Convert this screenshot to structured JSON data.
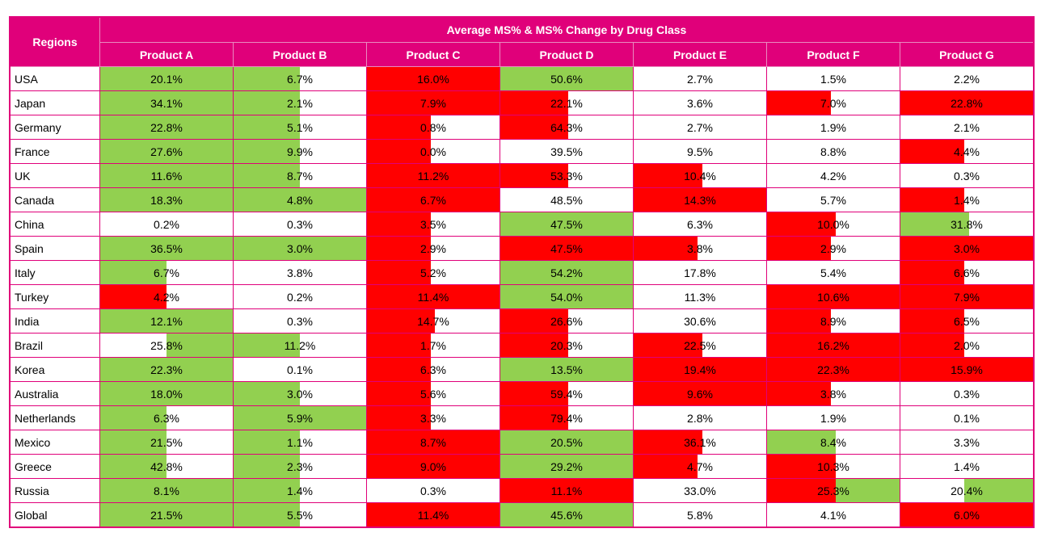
{
  "header": {
    "regions_label": "Regions",
    "title": "Average MS% & MS% Change by Drug Class"
  },
  "colors": {
    "header_bg": "#e0007a",
    "positive": "#92d050",
    "negative": "#ff0000",
    "border": "#e0007a"
  },
  "chart_data": {
    "type": "table",
    "title": "Average MS% & MS% Change by Drug Class",
    "columns": [
      "Product A",
      "Product B",
      "Product C",
      "Product D",
      "Product E",
      "Product F",
      "Product G"
    ],
    "rows": [
      {
        "region": "USA",
        "values": [
          "20.1%",
          "6.7%",
          "16.0%",
          "50.6%",
          "2.7%",
          "1.5%",
          "2.2%"
        ],
        "change": [
          {
            "c": "g",
            "p": 100
          },
          {
            "c": "g",
            "p": 50
          },
          {
            "c": "r",
            "p": 100
          },
          {
            "c": "g",
            "p": 100
          },
          null,
          null,
          null
        ]
      },
      {
        "region": "Japan",
        "values": [
          "34.1%",
          "2.1%",
          "7.9%",
          "22.1%",
          "3.6%",
          "7.0%",
          "22.8%"
        ],
        "change": [
          {
            "c": "g",
            "p": 100
          },
          {
            "c": "g",
            "p": 50
          },
          {
            "c": "r",
            "p": 100
          },
          {
            "c": "r",
            "p": 51
          },
          null,
          {
            "c": "r",
            "p": 48
          },
          {
            "c": "r",
            "p": 100
          }
        ]
      },
      {
        "region": "Germany",
        "values": [
          "22.8%",
          "5.1%",
          "0.8%",
          "64.3%",
          "2.7%",
          "1.9%",
          "2.1%"
        ],
        "change": [
          {
            "c": "g",
            "p": 100
          },
          {
            "c": "g",
            "p": 50
          },
          {
            "c": "r",
            "p": 48
          },
          {
            "c": "r",
            "p": 51
          },
          null,
          null,
          null
        ]
      },
      {
        "region": "France",
        "values": [
          "27.6%",
          "9.9%",
          "0.0%",
          "39.5%",
          "9.5%",
          "8.8%",
          "4.4%"
        ],
        "change": [
          {
            "c": "g",
            "p": 100
          },
          {
            "c": "g",
            "p": 50
          },
          {
            "c": "r",
            "p": 48
          },
          null,
          null,
          null,
          {
            "c": "r",
            "p": 48
          }
        ]
      },
      {
        "region": "UK",
        "values": [
          "11.6%",
          "8.7%",
          "11.2%",
          "53.3%",
          "10.4%",
          "4.2%",
          "0.3%"
        ],
        "change": [
          {
            "c": "g",
            "p": 100
          },
          {
            "c": "g",
            "p": 50
          },
          {
            "c": "r",
            "p": 100
          },
          {
            "c": "r",
            "p": 51
          },
          {
            "c": "r",
            "p": 52
          },
          null,
          null
        ]
      },
      {
        "region": "Canada",
        "values": [
          "18.3%",
          "4.8%",
          "6.7%",
          "48.5%",
          "14.3%",
          "5.7%",
          "1.4%"
        ],
        "change": [
          {
            "c": "g",
            "p": 100
          },
          {
            "c": "g",
            "p": 100
          },
          {
            "c": "r",
            "p": 100
          },
          null,
          {
            "c": "r",
            "p": 100
          },
          null,
          {
            "c": "r",
            "p": 48
          }
        ]
      },
      {
        "region": "China",
        "values": [
          "0.2%",
          "0.3%",
          "3.5%",
          "47.5%",
          "6.3%",
          "10.0%",
          "31.8%"
        ],
        "change": [
          null,
          null,
          {
            "c": "r",
            "p": 48
          },
          {
            "c": "g",
            "p": 100
          },
          null,
          {
            "c": "r",
            "p": 52
          },
          {
            "c": "g",
            "p": 52
          }
        ]
      },
      {
        "region": "Spain",
        "values": [
          "36.5%",
          "3.0%",
          "2.9%",
          "47.5%",
          "3.8%",
          "2.9%",
          "3.0%"
        ],
        "change": [
          {
            "c": "g",
            "p": 100
          },
          {
            "c": "g",
            "p": 100
          },
          {
            "c": "r",
            "p": 48
          },
          {
            "c": "r",
            "p": 100
          },
          {
            "c": "r",
            "p": 48
          },
          {
            "c": "r",
            "p": 48
          },
          {
            "c": "r",
            "p": 100
          }
        ]
      },
      {
        "region": "Italy",
        "values": [
          "6.7%",
          "3.8%",
          "5.2%",
          "54.2%",
          "17.8%",
          "5.4%",
          "6.6%"
        ],
        "change": [
          {
            "c": "g",
            "p": 50
          },
          null,
          {
            "c": "r",
            "p": 48
          },
          {
            "c": "g",
            "p": 100
          },
          null,
          null,
          {
            "c": "r",
            "p": 48
          }
        ]
      },
      {
        "region": "Turkey",
        "values": [
          "4.2%",
          "0.2%",
          "11.4%",
          "54.0%",
          "11.3%",
          "10.6%",
          "7.9%"
        ],
        "change": [
          {
            "c": "r",
            "p": 50
          },
          null,
          {
            "c": "r",
            "p": 100
          },
          {
            "c": "g",
            "p": 100
          },
          null,
          {
            "c": "r",
            "p": 100
          },
          {
            "c": "r",
            "p": 100
          }
        ]
      },
      {
        "region": "India",
        "values": [
          "12.1%",
          "0.3%",
          "14.7%",
          "26.6%",
          "30.6%",
          "8.9%",
          "6.5%"
        ],
        "change": [
          {
            "c": "g",
            "p": 100
          },
          null,
          {
            "c": "r",
            "p": 51
          },
          {
            "c": "r",
            "p": 51
          },
          null,
          {
            "c": "r",
            "p": 48
          },
          {
            "c": "r",
            "p": 48
          }
        ]
      },
      {
        "region": "Brazil",
        "values": [
          "25.8%",
          "11.2%",
          "1.7%",
          "20.3%",
          "22.5%",
          "16.2%",
          "2.0%"
        ],
        "change": [
          {
            "c": "g",
            "p": 50,
            "s": "right"
          },
          {
            "c": "g",
            "p": 50
          },
          {
            "c": "r",
            "p": 48
          },
          {
            "c": "r",
            "p": 51
          },
          {
            "c": "r",
            "p": 52
          },
          {
            "c": "r",
            "p": 100
          },
          {
            "c": "r",
            "p": 48
          }
        ]
      },
      {
        "region": "Korea",
        "values": [
          "22.3%",
          "0.1%",
          "6.3%",
          "13.5%",
          "19.4%",
          "22.3%",
          "15.9%"
        ],
        "change": [
          {
            "c": "g",
            "p": 100
          },
          null,
          {
            "c": "r",
            "p": 48
          },
          {
            "c": "g",
            "p": 100
          },
          {
            "c": "r",
            "p": 100
          },
          {
            "c": "r",
            "p": 100
          },
          {
            "c": "r",
            "p": 100
          }
        ]
      },
      {
        "region": "Australia",
        "values": [
          "18.0%",
          "3.0%",
          "5.6%",
          "59.4%",
          "9.6%",
          "3.8%",
          "0.3%"
        ],
        "change": [
          {
            "c": "g",
            "p": 100
          },
          {
            "c": "g",
            "p": 50
          },
          {
            "c": "r",
            "p": 48
          },
          {
            "c": "r",
            "p": 51
          },
          {
            "c": "r",
            "p": 100
          },
          {
            "c": "r",
            "p": 48
          },
          null
        ]
      },
      {
        "region": "Netherlands",
        "values": [
          "6.3%",
          "5.9%",
          "3.3%",
          "79.4%",
          "2.8%",
          "1.9%",
          "0.1%"
        ],
        "change": [
          {
            "c": "g",
            "p": 50
          },
          {
            "c": "g",
            "p": 100
          },
          {
            "c": "r",
            "p": 48
          },
          {
            "c": "r",
            "p": 51
          },
          null,
          null,
          null
        ]
      },
      {
        "region": "Mexico",
        "values": [
          "21.5%",
          "1.1%",
          "8.7%",
          "20.5%",
          "36.1%",
          "8.4%",
          "3.3%"
        ],
        "change": [
          {
            "c": "g",
            "p": 50
          },
          {
            "c": "g",
            "p": 50
          },
          {
            "c": "r",
            "p": 100
          },
          {
            "c": "g",
            "p": 100
          },
          {
            "c": "r",
            "p": 52
          },
          {
            "c": "g",
            "p": 52
          },
          null
        ]
      },
      {
        "region": "Greece",
        "values": [
          "42.8%",
          "2.3%",
          "9.0%",
          "29.2%",
          "4.7%",
          "10.3%",
          "1.4%"
        ],
        "change": [
          {
            "c": "g",
            "p": 50
          },
          {
            "c": "g",
            "p": 50
          },
          {
            "c": "r",
            "p": 100
          },
          {
            "c": "g",
            "p": 100
          },
          {
            "c": "r",
            "p": 48
          },
          {
            "c": "r",
            "p": 52
          },
          null
        ]
      },
      {
        "region": "Russia",
        "values": [
          "8.1%",
          "1.4%",
          "0.3%",
          "11.1%",
          "33.0%",
          "25.3%",
          "20.4%"
        ],
        "change": [
          {
            "c": "g",
            "p": 100
          },
          {
            "c": "g",
            "p": 50
          },
          null,
          {
            "c": "r",
            "p": 100
          },
          null,
          {
            "c": "r",
            "p": 52,
            "g": true
          },
          {
            "c": "g",
            "p": 52,
            "s": "right"
          }
        ]
      },
      {
        "region": "Global",
        "values": [
          "21.5%",
          "5.5%",
          "11.4%",
          "45.6%",
          "5.8%",
          "4.1%",
          "6.0%"
        ],
        "change": [
          {
            "c": "g",
            "p": 100
          },
          {
            "c": "g",
            "p": 50
          },
          {
            "c": "r",
            "p": 100
          },
          {
            "c": "g",
            "p": 100
          },
          null,
          null,
          {
            "c": "r",
            "p": 100
          }
        ]
      }
    ]
  }
}
